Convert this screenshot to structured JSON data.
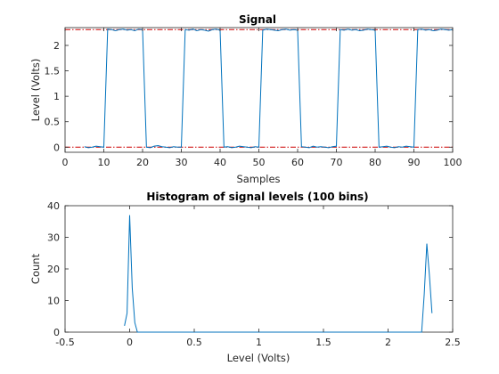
{
  "chart_data": [
    {
      "type": "line",
      "title": "Signal",
      "xlabel": "Samples",
      "ylabel": "Level (Volts)",
      "xlim": [
        0,
        100
      ],
      "ylim": [
        -0.1,
        2.35
      ],
      "xticks": [
        0,
        10,
        20,
        30,
        40,
        50,
        60,
        70,
        80,
        90,
        100
      ],
      "yticks": [
        0,
        0.5,
        1,
        1.5,
        2
      ],
      "ytick_labels": [
        "0",
        "0.5",
        "1",
        "1.5",
        "2"
      ],
      "reference_lines": [
        {
          "y": 2.31,
          "style": "dash-dot",
          "color": "#cc0000"
        },
        {
          "y": 0.0,
          "style": "dash-dot",
          "color": "#cc0000"
        }
      ],
      "series": [
        {
          "color": "#0072bd",
          "x": [
            5,
            6,
            7,
            8,
            9,
            10,
            11,
            12,
            13,
            14,
            15,
            16,
            17,
            18,
            19,
            20,
            21,
            22,
            23,
            24,
            25,
            26,
            27,
            28,
            29,
            30,
            31,
            32,
            33,
            34,
            35,
            36,
            37,
            38,
            39,
            40,
            41,
            42,
            43,
            44,
            45,
            46,
            47,
            48,
            49,
            50,
            51,
            52,
            53,
            54,
            55,
            56,
            57,
            58,
            59,
            60,
            61,
            62,
            63,
            64,
            65,
            66,
            67,
            68,
            69,
            70,
            71,
            72,
            73,
            74,
            75,
            76,
            77,
            78,
            79,
            80,
            81,
            82,
            83,
            84,
            85,
            86,
            87,
            88,
            89,
            90,
            91,
            92,
            93,
            94,
            95,
            96,
            97,
            98,
            99,
            100
          ],
          "y": [
            0.01,
            -0.01,
            0.0,
            0.02,
            0.01,
            0.0,
            2.32,
            2.31,
            2.29,
            2.31,
            2.32,
            2.3,
            2.31,
            2.29,
            2.32,
            2.31,
            0.0,
            -0.01,
            0.02,
            0.03,
            0.01,
            0.0,
            -0.01,
            0.01,
            0.0,
            0.0,
            2.31,
            2.3,
            2.32,
            2.29,
            2.31,
            2.3,
            2.28,
            2.31,
            2.32,
            2.3,
            0.0,
            0.01,
            -0.01,
            0.0,
            0.02,
            0.01,
            0.0,
            -0.01,
            0.01,
            0.0,
            2.3,
            2.32,
            2.31,
            2.3,
            2.29,
            2.31,
            2.32,
            2.3,
            2.31,
            2.3,
            0.01,
            0.0,
            -0.01,
            0.02,
            0.0,
            0.01,
            0.0,
            -0.01,
            0.01,
            0.02,
            2.31,
            2.3,
            2.32,
            2.3,
            2.31,
            2.29,
            2.3,
            2.32,
            2.31,
            2.3,
            0.0,
            0.01,
            0.02,
            0.0,
            -0.01,
            0.01,
            0.0,
            0.02,
            0.01,
            0.0,
            2.31,
            2.32,
            2.3,
            2.31,
            2.29,
            2.3,
            2.32,
            2.31,
            2.3,
            2.31
          ]
        }
      ],
      "grid": false
    },
    {
      "type": "line",
      "title": "Histogram of signal levels (100 bins)",
      "xlabel": "Level (Volts)",
      "ylabel": "Count",
      "xlim": [
        -0.5,
        2.5
      ],
      "ylim": [
        0,
        40
      ],
      "xticks": [
        -0.5,
        0,
        0.5,
        1,
        1.5,
        2,
        2.5
      ],
      "xtick_labels": [
        "-0.5",
        "0",
        "0.5",
        "1",
        "1.5",
        "2",
        "2.5"
      ],
      "yticks": [
        0,
        10,
        20,
        30,
        40
      ],
      "series": [
        {
          "color": "#0072bd",
          "x": [
            -0.04,
            -0.02,
            0.0,
            0.02,
            0.04,
            0.06,
            0.1,
            0.5,
            1.0,
            1.5,
            2.0,
            2.2,
            2.26,
            2.28,
            2.3,
            2.32,
            2.34
          ],
          "y": [
            2,
            6,
            37,
            14,
            3,
            0,
            0,
            0,
            0,
            0,
            0,
            0,
            0,
            12,
            28,
            18,
            6
          ]
        }
      ],
      "grid": false
    }
  ]
}
